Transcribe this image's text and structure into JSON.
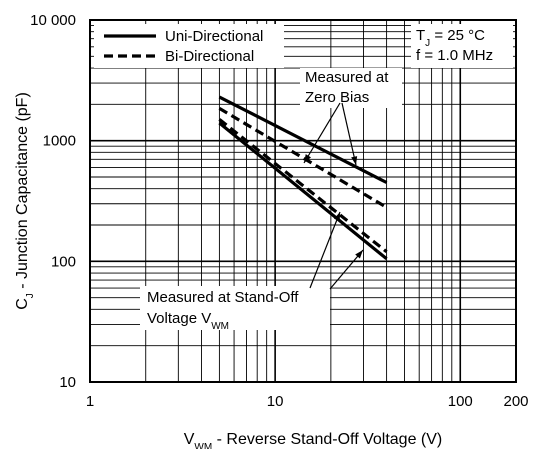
{
  "chart_data": {
    "type": "line",
    "title": "",
    "xlabel": {
      "main": "V",
      "sub": "WM",
      "rest": " - Reverse Stand-Off Voltage (V)"
    },
    "ylabel": {
      "main": "C",
      "sub": "J",
      "rest": " - Junction Capacitance (pF)"
    },
    "xscale": "log",
    "yscale": "log",
    "xlim": [
      1,
      200
    ],
    "ylim": [
      10,
      10000
    ],
    "grid": true,
    "xticks": [
      {
        "value": 1,
        "label": "1"
      },
      {
        "value": 10,
        "label": "10"
      },
      {
        "value": 100,
        "label": "100"
      },
      {
        "value": 200,
        "label": "200"
      }
    ],
    "yticks": [
      {
        "value": 10,
        "label": "10"
      },
      {
        "value": 100,
        "label": "100"
      },
      {
        "value": 1000,
        "label": "1000"
      },
      {
        "value": 10000,
        "label": "10 000"
      }
    ],
    "legend": {
      "placement": "top-left",
      "entries": [
        {
          "label": "Uni-Directional",
          "style": "solid"
        },
        {
          "label": "Bi-Directional",
          "style": "dashed"
        }
      ]
    },
    "conditions": {
      "line1": {
        "main": "T",
        "sub": "J",
        "rest": " = 25 °C"
      },
      "line2": "f = 1.0 MHz"
    },
    "series": [
      {
        "group": "Measured at Zero Bias",
        "style": "solid",
        "x": [
          5,
          40
        ],
        "y": [
          2300,
          450
        ]
      },
      {
        "group": "Measured at Zero Bias",
        "style": "dashed",
        "x": [
          5,
          40
        ],
        "y": [
          1850,
          280
        ]
      },
      {
        "group": "Measured at Stand-Off Voltage",
        "style": "solid",
        "x": [
          5,
          40
        ],
        "y": [
          1400,
          105
        ]
      },
      {
        "group": "Measured at Stand-Off Voltage",
        "style": "dashed",
        "x": [
          5,
          40
        ],
        "y": [
          1500,
          120
        ]
      }
    ],
    "annotations": [
      {
        "lines": [
          "Measured at",
          "Zero Bias"
        ]
      },
      {
        "lines": [
          "Measured at Stand-Off",
          {
            "main": "Voltage V",
            "sub": "WM"
          }
        ]
      }
    ]
  }
}
